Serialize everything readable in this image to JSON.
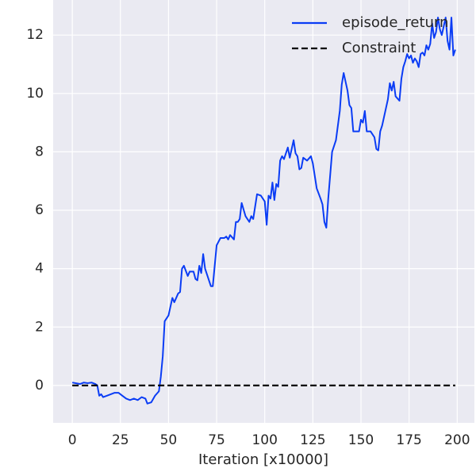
{
  "chart_data": {
    "type": "line",
    "xlabel": "Iteration [x10000]",
    "xlim": [
      -9.95,
      208.95
    ],
    "ylim": [
      -1.28,
      13.2
    ],
    "xticks": [
      0,
      25,
      50,
      75,
      100,
      125,
      150,
      175,
      200
    ],
    "yticks": [
      0,
      2,
      4,
      6,
      8,
      10,
      12
    ],
    "grid": true,
    "legend": "upper right",
    "series": [
      {
        "name": "episode_return",
        "color": "#0a3cf5",
        "style": "solid",
        "x": [
          0,
          4,
          6,
          8,
          10,
          12,
          13,
          14,
          15,
          16,
          18,
          20,
          22,
          24,
          26,
          28,
          30,
          32,
          34,
          36,
          38,
          39,
          41,
          43,
          45,
          46,
          47,
          48,
          50,
          52,
          53,
          55,
          56,
          57,
          58,
          60,
          61,
          63,
          64,
          65,
          66,
          67,
          68,
          69,
          71,
          72,
          73,
          74,
          75,
          77,
          79,
          80,
          81,
          82,
          84,
          85,
          86,
          87,
          88,
          90,
          92,
          93,
          94,
          96,
          98,
          100,
          101,
          102,
          103,
          104,
          105,
          106,
          107,
          108,
          109,
          110,
          112,
          113,
          115,
          116,
          117,
          118,
          119,
          120,
          122,
          124,
          125,
          127,
          129,
          130,
          131,
          132,
          133,
          135,
          137,
          139,
          140,
          141,
          142,
          143,
          144,
          145,
          146,
          148,
          149,
          150,
          151,
          152,
          153,
          155,
          157,
          158,
          159,
          160,
          161,
          163,
          164,
          165,
          166,
          167,
          168,
          170,
          171,
          172,
          173,
          174,
          175,
          176,
          177,
          178,
          179,
          180,
          181,
          182,
          183,
          184,
          185,
          186,
          187,
          188,
          189,
          190,
          191,
          192,
          193,
          194,
          195,
          196,
          197,
          198,
          199
        ],
        "values": [
          0.1,
          0.05,
          0.1,
          0.08,
          0.1,
          0.05,
          0,
          -0.35,
          -0.3,
          -0.4,
          -0.35,
          -0.3,
          -0.25,
          -0.25,
          -0.35,
          -0.45,
          -0.5,
          -0.45,
          -0.5,
          -0.4,
          -0.45,
          -0.62,
          -0.58,
          -0.35,
          -0.2,
          0.3,
          1.0,
          2.2,
          2.4,
          3.0,
          2.85,
          3.15,
          3.2,
          4.0,
          4.1,
          3.75,
          3.9,
          3.9,
          3.65,
          3.6,
          4.1,
          3.85,
          4.5,
          4.0,
          3.6,
          3.4,
          3.4,
          4.1,
          4.8,
          5.05,
          5.05,
          5.1,
          5.0,
          5.15,
          5.0,
          5.6,
          5.6,
          5.7,
          6.25,
          5.8,
          5.6,
          5.8,
          5.7,
          6.55,
          6.5,
          6.3,
          5.5,
          6.5,
          6.4,
          6.95,
          6.35,
          6.9,
          6.8,
          7.7,
          7.85,
          7.75,
          8.15,
          7.8,
          8.4,
          7.95,
          7.85,
          7.4,
          7.45,
          7.8,
          7.7,
          7.85,
          7.6,
          6.75,
          6.4,
          6.2,
          5.6,
          5.4,
          6.4,
          8.0,
          8.4,
          9.4,
          10.3,
          10.7,
          10.4,
          10.1,
          9.6,
          9.5,
          8.7,
          8.7,
          8.7,
          9.1,
          9.0,
          9.4,
          8.7,
          8.7,
          8.5,
          8.1,
          8.05,
          8.7,
          8.9,
          9.5,
          9.8,
          10.35,
          10.1,
          10.4,
          9.9,
          9.75,
          10.5,
          10.9,
          11.1,
          11.35,
          11.2,
          11.3,
          11.05,
          11.2,
          11.1,
          10.9,
          11.35,
          11.4,
          11.3,
          11.65,
          11.5,
          11.7,
          12.4,
          11.9,
          12.1,
          12.6,
          12.2,
          12.0,
          12.3,
          12.6,
          11.8,
          11.5,
          12.6,
          11.3,
          11.5
        ]
      },
      {
        "name": "Constraint",
        "color": "#000000",
        "style": "dashed",
        "x": [
          0,
          199
        ],
        "values": [
          0,
          0
        ]
      }
    ]
  }
}
